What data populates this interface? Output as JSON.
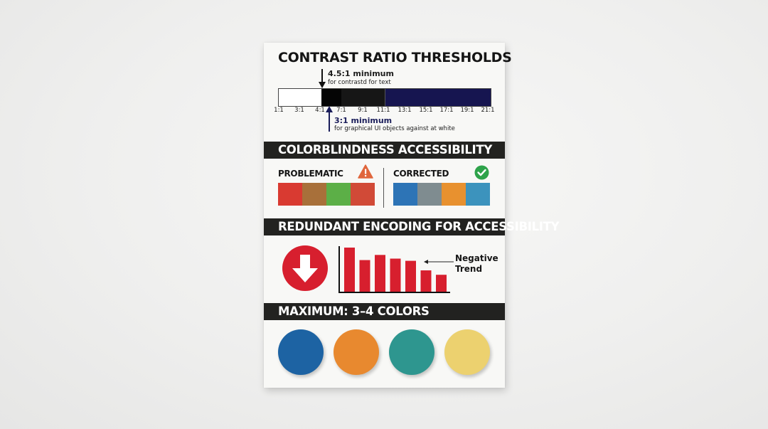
{
  "poster": {
    "contrast": {
      "title": "CONTRAST RATIO THRESHOLDS",
      "text_note_main": "4.5:1 minimum",
      "text_note_sub": "for contrastd for text",
      "ui_note_main": "3:1 minimum",
      "ui_note_sub": "for graphical UI objects against at white",
      "ticks": [
        "1:1",
        "3:1",
        "4:1",
        "7:1",
        "9:1",
        "11:1",
        "13:1",
        "15:1",
        "17:1",
        "19:1",
        "21:1"
      ],
      "bar_colors": [
        "#ffffff",
        "#050505",
        "#161616",
        "#161550"
      ]
    },
    "colorblind": {
      "title": "COLORBLINDNESS ACCESSIBILITY",
      "problematic_label": "PROBLEMATIC",
      "corrected_label": "CORRECTED",
      "problematic_colors": [
        "#d93a31",
        "#a8703a",
        "#5caf47",
        "#d14a37"
      ],
      "corrected_colors": [
        "#2d74b6",
        "#7f8c90",
        "#e8912f",
        "#3c93bd"
      ],
      "warning_icon": "warning-triangle-icon",
      "check_icon": "check-circle-icon"
    },
    "redundant": {
      "title": "REDUNDANT ENCODING FOR ACCESSIBILITY",
      "arrow_icon": "down-arrow-icon",
      "trend_label_line1": "Negative",
      "trend_label_line2": "Trend",
      "bar_color": "#d71f2e",
      "chart_data": {
        "type": "bar",
        "values": [
          60,
          43,
          50,
          45,
          42,
          29,
          23
        ]
      }
    },
    "palette": {
      "title": "MAXIMUM: 3–4 COLORS",
      "colors": [
        "#1d63a3",
        "#e8892f",
        "#2e968f",
        "#ecd16f"
      ]
    }
  }
}
